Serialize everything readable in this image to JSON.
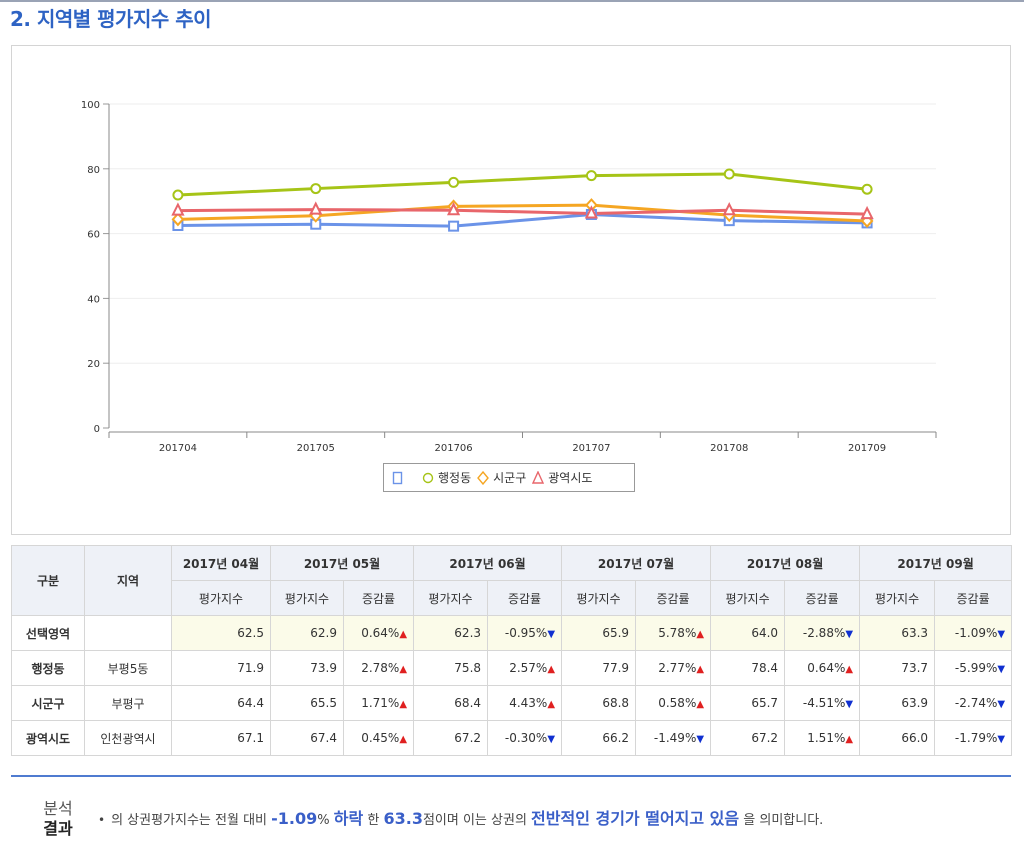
{
  "section_title": "2. 지역별 평가지수 추이",
  "chart_data": {
    "type": "line",
    "categories": [
      "201704",
      "201705",
      "201706",
      "201707",
      "201708",
      "201709"
    ],
    "ylim": [
      0,
      100
    ],
    "yticks": [
      "0",
      "20",
      "40",
      "60",
      "80",
      "100"
    ],
    "grid": true,
    "legend_position": "bottom",
    "series": [
      {
        "name": "",
        "marker": "square",
        "color": "#6b93e8",
        "values": [
          62.5,
          62.9,
          62.3,
          65.9,
          64.0,
          63.3
        ]
      },
      {
        "name": "행정동",
        "marker": "circle",
        "color": "#a6c417",
        "values": [
          71.9,
          73.9,
          75.8,
          77.9,
          78.4,
          73.7
        ]
      },
      {
        "name": "시군구",
        "marker": "diamond",
        "color": "#f5a623",
        "values": [
          64.4,
          65.5,
          68.4,
          68.8,
          65.7,
          63.9
        ]
      },
      {
        "name": "광역시도",
        "marker": "triangle",
        "color": "#e8666b",
        "values": [
          67.1,
          67.4,
          67.2,
          66.2,
          67.2,
          66.0
        ]
      }
    ]
  },
  "table": {
    "head": {
      "category": "구분",
      "region": "지역",
      "months": [
        "2017년 04월",
        "2017년 05월",
        "2017년 06월",
        "2017년 07월",
        "2017년 08월",
        "2017년 09월"
      ],
      "index_label": "평가지수",
      "change_label": "증감률"
    },
    "rows": [
      {
        "label": "선택영역",
        "region": "",
        "first": "62.5",
        "cells": [
          {
            "v": "62.9",
            "c": "0.64%",
            "d": "up"
          },
          {
            "v": "62.3",
            "c": "-0.95%",
            "d": "down"
          },
          {
            "v": "65.9",
            "c": "5.78%",
            "d": "up"
          },
          {
            "v": "64.0",
            "c": "-2.88%",
            "d": "down"
          },
          {
            "v": "63.3",
            "c": "-1.09%",
            "d": "down"
          }
        ]
      },
      {
        "label": "행정동",
        "region": "부평5동",
        "first": "71.9",
        "cells": [
          {
            "v": "73.9",
            "c": "2.78%",
            "d": "up"
          },
          {
            "v": "75.8",
            "c": "2.57%",
            "d": "up"
          },
          {
            "v": "77.9",
            "c": "2.77%",
            "d": "up"
          },
          {
            "v": "78.4",
            "c": "0.64%",
            "d": "up"
          },
          {
            "v": "73.7",
            "c": "-5.99%",
            "d": "down"
          }
        ]
      },
      {
        "label": "시군구",
        "region": "부평구",
        "first": "64.4",
        "cells": [
          {
            "v": "65.5",
            "c": "1.71%",
            "d": "up"
          },
          {
            "v": "68.4",
            "c": "4.43%",
            "d": "up"
          },
          {
            "v": "68.8",
            "c": "0.58%",
            "d": "up"
          },
          {
            "v": "65.7",
            "c": "-4.51%",
            "d": "down"
          },
          {
            "v": "63.9",
            "c": "-2.74%",
            "d": "down"
          }
        ]
      },
      {
        "label": "광역시도",
        "region": "인천광역시",
        "first": "67.1",
        "cells": [
          {
            "v": "67.4",
            "c": "0.45%",
            "d": "up"
          },
          {
            "v": "67.2",
            "c": "-0.30%",
            "d": "down"
          },
          {
            "v": "66.2",
            "c": "-1.49%",
            "d": "down"
          },
          {
            "v": "67.2",
            "c": "1.51%",
            "d": "up"
          },
          {
            "v": "66.0",
            "c": "-1.79%",
            "d": "down"
          }
        ]
      }
    ]
  },
  "arrows": {
    "up": "▲",
    "down": "▼",
    "up_color": "#e02020",
    "down_color": "#1030d0"
  },
  "result": {
    "label_line1": "분석",
    "label_line2": "결과",
    "bullet": "•",
    "t1": "의 상권평가지수는 전월 대비",
    "pct": "-1.09",
    "pct_unit": "%",
    "dir": "하락",
    "t2": "한",
    "score": "63.3",
    "t3": "점이며 이는 상권의",
    "summary": "전반적인 경기가 떨어지고 있음",
    "t4": "을 의미합니다."
  }
}
